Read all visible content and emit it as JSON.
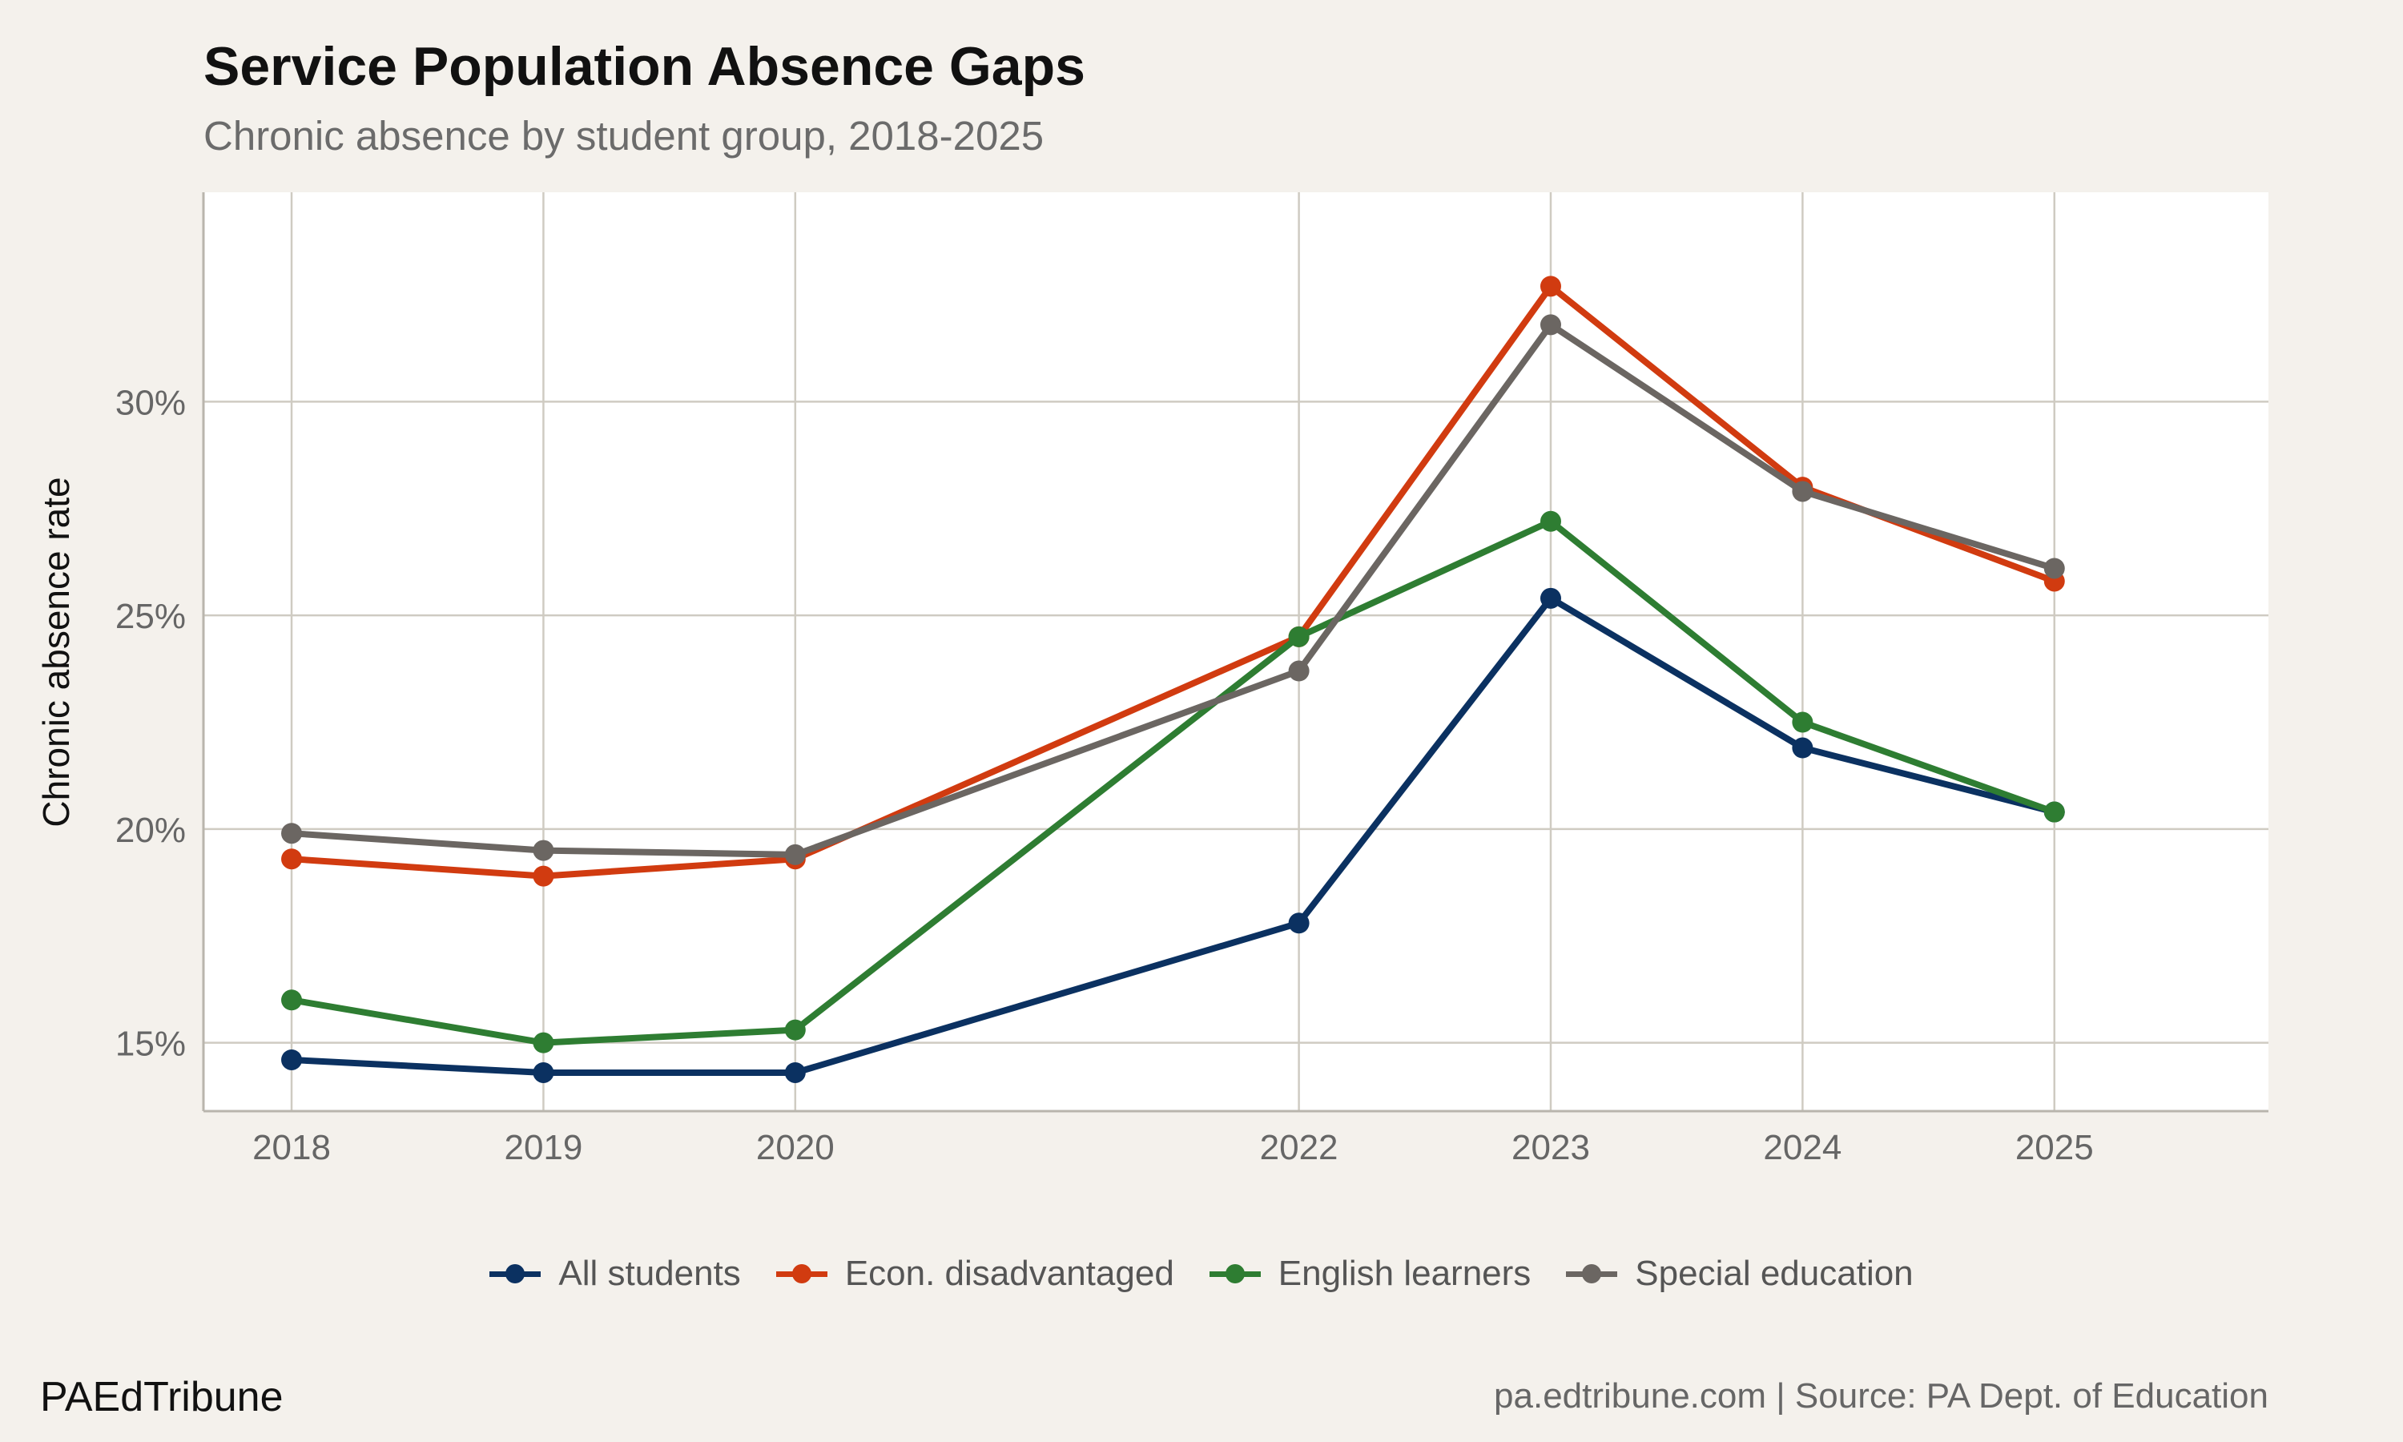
{
  "chart_data": {
    "type": "line",
    "title": "Service Population Absence Gaps",
    "subtitle": "Chronic absence by student group, 2018-2025",
    "xlabel": "",
    "ylabel": "Chronic absence rate",
    "x": [
      2018,
      2019,
      2020,
      2022,
      2023,
      2024,
      2025
    ],
    "xlim": [
      2017.65,
      2025.85
    ],
    "ylim": [
      13.4,
      34.9
    ],
    "yticks": [
      15,
      20,
      25,
      30
    ],
    "ytick_labels": [
      "15%",
      "20%",
      "25%",
      "30%"
    ],
    "xtick_labels": [
      "2018",
      "2019",
      "2020",
      "2022",
      "2023",
      "2024",
      "2025"
    ],
    "grid": true,
    "legend_position": "bottom",
    "series": [
      {
        "name": "All students",
        "color": "#0b3161",
        "values": [
          14.6,
          14.3,
          14.3,
          17.8,
          25.4,
          21.9,
          20.4
        ]
      },
      {
        "name": "Econ. disadvantaged",
        "color": "#d13b10",
        "values": [
          19.3,
          18.9,
          19.3,
          24.5,
          32.7,
          28.0,
          25.8
        ]
      },
      {
        "name": "English learners",
        "color": "#2e7d32",
        "values": [
          16.0,
          15.0,
          15.3,
          24.5,
          27.2,
          22.5,
          20.4
        ]
      },
      {
        "name": "Special education",
        "color": "#6b6662",
        "values": [
          19.9,
          19.5,
          19.4,
          23.7,
          31.8,
          27.9,
          26.1
        ]
      }
    ]
  },
  "footer": {
    "brand": "PAEdTribune",
    "source": "pa.edtribune.com | Source: PA Dept. of Education"
  },
  "colors": {
    "background": "#f4f1ec",
    "panel": "#ffffff",
    "grid": "#cfcbc2"
  }
}
